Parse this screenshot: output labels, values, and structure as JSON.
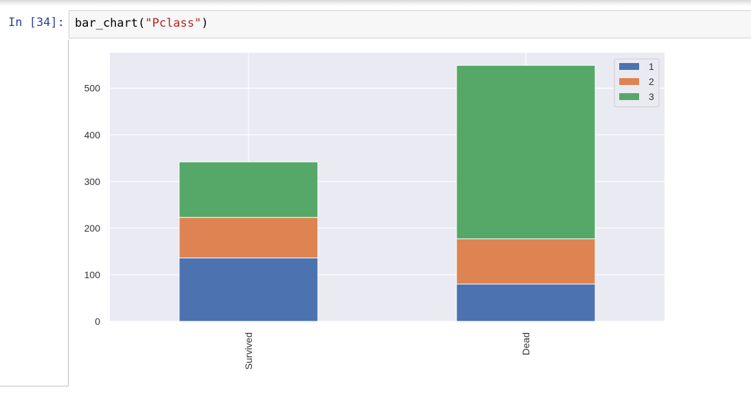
{
  "cell": {
    "prompt": "In [34]:",
    "code_func": "bar_chart(",
    "code_arg": "\"Pclass\"",
    "code_close": ")"
  },
  "chart_data": {
    "type": "bar",
    "stacked": true,
    "categories": [
      "Survived",
      "Dead"
    ],
    "series": [
      {
        "name": "1",
        "values": [
          136,
          80
        ],
        "color": "#4c72b0"
      },
      {
        "name": "2",
        "values": [
          87,
          97
        ],
        "color": "#dd8452"
      },
      {
        "name": "3",
        "values": [
          119,
          372
        ],
        "color": "#55a868"
      }
    ],
    "yticks": [
      0,
      100,
      200,
      300,
      400,
      500
    ],
    "ylim": [
      0,
      576
    ],
    "grid": true,
    "legend_position": "top-right",
    "background": "#eaeaf2",
    "xtick_rotation": 90
  }
}
